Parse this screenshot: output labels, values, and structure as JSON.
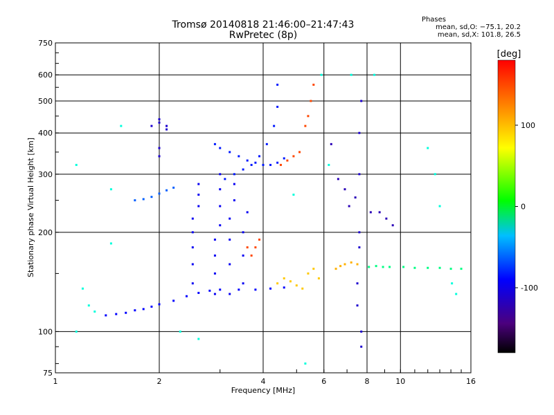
{
  "header": {
    "title_line1": "Tromsø 20140818 21:46:00–21:47:43",
    "title_line2": "RwPretec (8p)"
  },
  "phase_box": {
    "heading": "Phases",
    "line1": "mean, sd,O: −75.1, 20.2",
    "line2": "mean, sd,X: 101.8, 26.5"
  },
  "colors": {
    "background": "#ffffff",
    "axes": "#000000",
    "colormap": [
      "#000000",
      "#4b007d",
      "#0000ff",
      "#00ffff",
      "#00ff00",
      "#ffff00",
      "#ff8000",
      "#ff0000"
    ]
  },
  "chart_data": {
    "type": "scatter",
    "title": "Tromsø 20140818 21:46:00–21:47:43",
    "subtitle": "RwPretec (8p)",
    "xlabel": "Frequency [MHz]",
    "ylabel": "Stationary phase Virtual Height [km]",
    "x_scale": "log",
    "y_scale": "log",
    "xlim": [
      1,
      16
    ],
    "ylim": [
      75,
      750
    ],
    "x_ticks": [
      1,
      2,
      4,
      6,
      8,
      10,
      16
    ],
    "y_ticks": [
      75,
      100,
      200,
      300,
      400,
      500,
      600,
      750
    ],
    "x_grid": [
      2,
      4,
      6,
      8,
      10
    ],
    "y_grid": [
      100,
      200,
      300,
      400,
      500,
      600
    ],
    "grid": true,
    "colorbar": {
      "label": "[deg]",
      "range": [
        -180,
        180
      ],
      "ticks": [
        100,
        0,
        -100
      ],
      "placement": "right"
    },
    "series": [
      {
        "points": [
          [
            1.4,
            112
          ],
          [
            1.5,
            113
          ],
          [
            1.6,
            114
          ],
          [
            1.7,
            116
          ],
          [
            1.8,
            117
          ],
          [
            1.9,
            119
          ],
          [
            2.0,
            121
          ],
          [
            2.2,
            124
          ],
          [
            2.4,
            128
          ],
          [
            2.6,
            131
          ],
          [
            2.8,
            133
          ],
          [
            3.0,
            134
          ],
          [
            3.4,
            134
          ],
          [
            3.8,
            134
          ],
          [
            4.2,
            135
          ],
          [
            4.6,
            136
          ]
        ],
        "phase": -90
      },
      {
        "points": [
          [
            1.7,
            250
          ],
          [
            1.8,
            252
          ],
          [
            1.9,
            256
          ],
          [
            2.0,
            262
          ],
          [
            2.1,
            268
          ],
          [
            2.2,
            273
          ]
        ],
        "phase": -70
      },
      {
        "points": [
          [
            2.5,
            140
          ],
          [
            2.5,
            160
          ],
          [
            2.5,
            180
          ],
          [
            2.5,
            200
          ],
          [
            2.5,
            220
          ],
          [
            2.6,
            240
          ],
          [
            2.6,
            260
          ],
          [
            2.6,
            280
          ],
          [
            2.9,
            130
          ],
          [
            2.9,
            150
          ],
          [
            2.9,
            170
          ],
          [
            2.9,
            190
          ],
          [
            3.0,
            210
          ],
          [
            3.0,
            240
          ],
          [
            3.0,
            270
          ],
          [
            3.0,
            300
          ],
          [
            3.2,
            130
          ],
          [
            3.2,
            160
          ],
          [
            3.2,
            190
          ],
          [
            3.2,
            220
          ],
          [
            3.3,
            250
          ],
          [
            3.3,
            280
          ],
          [
            3.5,
            140
          ],
          [
            3.5,
            170
          ],
          [
            3.5,
            200
          ],
          [
            3.6,
            230
          ]
        ],
        "phase": -95
      },
      {
        "points": [
          [
            2.9,
            370
          ],
          [
            3.0,
            360
          ],
          [
            3.2,
            350
          ],
          [
            3.4,
            340
          ],
          [
            3.6,
            330
          ],
          [
            3.8,
            325
          ],
          [
            4.0,
            320
          ],
          [
            4.2,
            320
          ],
          [
            4.4,
            325
          ],
          [
            4.6,
            335
          ],
          [
            3.1,
            290
          ],
          [
            3.3,
            300
          ],
          [
            3.5,
            310
          ],
          [
            3.7,
            320
          ],
          [
            3.9,
            340
          ],
          [
            4.1,
            370
          ],
          [
            4.3,
            420
          ],
          [
            4.4,
            480
          ],
          [
            4.4,
            560
          ]
        ],
        "phase": -85
      },
      {
        "points": [
          [
            1.9,
            420
          ],
          [
            2.0,
            430
          ],
          [
            2.0,
            440
          ],
          [
            2.1,
            420
          ],
          [
            2.1,
            410
          ],
          [
            2.0,
            360
          ],
          [
            2.0,
            340
          ]
        ],
        "phase": -110
      },
      {
        "points": [
          [
            4.5,
            320
          ],
          [
            4.7,
            330
          ],
          [
            4.9,
            340
          ],
          [
            5.1,
            350
          ],
          [
            5.3,
            420
          ],
          [
            5.4,
            450
          ],
          [
            5.5,
            500
          ],
          [
            5.6,
            560
          ],
          [
            3.7,
            170
          ],
          [
            3.8,
            180
          ],
          [
            3.9,
            190
          ],
          [
            3.6,
            180
          ]
        ],
        "phase": 150
      },
      {
        "points": [
          [
            4.4,
            140
          ],
          [
            4.6,
            145
          ],
          [
            4.8,
            142
          ],
          [
            5.0,
            138
          ],
          [
            5.2,
            135
          ],
          [
            5.4,
            150
          ],
          [
            5.6,
            155
          ],
          [
            5.8,
            145
          ]
        ],
        "phase": 95
      },
      {
        "points": [
          [
            6.5,
            155
          ],
          [
            6.7,
            158
          ],
          [
            6.9,
            160
          ],
          [
            7.2,
            162
          ],
          [
            7.5,
            160
          ]
        ],
        "phase": 105
      },
      {
        "points": [
          [
            8.1,
            157
          ],
          [
            8.5,
            158
          ],
          [
            8.9,
            157
          ],
          [
            9.3,
            157
          ],
          [
            10.2,
            157
          ],
          [
            11.0,
            156
          ],
          [
            12.0,
            156
          ],
          [
            13.0,
            156
          ],
          [
            14.0,
            155
          ],
          [
            15.0,
            155
          ]
        ],
        "phase": -15
      },
      {
        "points": [
          [
            7.5,
            120
          ],
          [
            7.5,
            140
          ],
          [
            7.6,
            180
          ],
          [
            7.6,
            200
          ],
          [
            7.7,
            100
          ],
          [
            7.7,
            90
          ],
          [
            7.6,
            300
          ],
          [
            7.6,
            400
          ],
          [
            7.7,
            500
          ]
        ],
        "phase": -110
      },
      {
        "points": [
          [
            6.3,
            370
          ],
          [
            6.6,
            290
          ],
          [
            6.9,
            270
          ],
          [
            7.1,
            240
          ],
          [
            7.4,
            255
          ]
        ],
        "phase": -120
      },
      {
        "points": [
          [
            8.2,
            230
          ],
          [
            8.7,
            230
          ],
          [
            9.1,
            220
          ],
          [
            9.5,
            210
          ]
        ],
        "phase": -120
      },
      {
        "points": [
          [
            1.15,
            100
          ],
          [
            1.2,
            135
          ],
          [
            1.25,
            120
          ],
          [
            1.3,
            115
          ],
          [
            1.15,
            320
          ],
          [
            1.45,
            185
          ],
          [
            1.55,
            420
          ],
          [
            1.45,
            270
          ],
          [
            5.3,
            80
          ],
          [
            4.9,
            260
          ],
          [
            6.2,
            320
          ],
          [
            12.0,
            360
          ],
          [
            12.6,
            300
          ],
          [
            13.0,
            240
          ],
          [
            14.1,
            140
          ],
          [
            14.5,
            130
          ],
          [
            2.3,
            100
          ],
          [
            2.6,
            95
          ],
          [
            5.9,
            600
          ],
          [
            7.2,
            600
          ],
          [
            8.4,
            600
          ]
        ],
        "phase": -30
      }
    ]
  }
}
